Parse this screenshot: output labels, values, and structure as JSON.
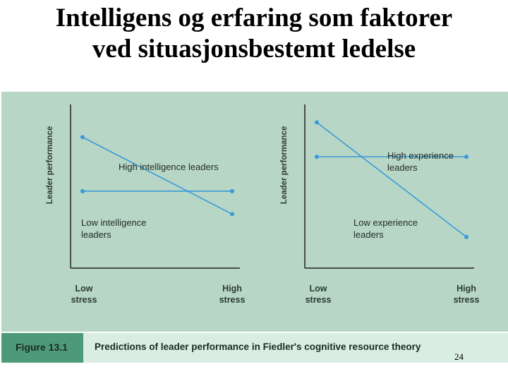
{
  "slide": {
    "title_line1": "Intelligens og erfaring som faktorer",
    "title_line2": "ved situasjonsbestemt ledelse",
    "page_number": "24"
  },
  "figure": {
    "tag": "Figure 13.1",
    "caption": "Predictions of leader performance in Fiedler's cognitive resource theory",
    "colors": {
      "background": "#b8d6c6",
      "caption_bar": "#d9ede3",
      "tag": "#4e9a78",
      "line": "#3a9ad9",
      "axis": "#222222"
    }
  },
  "chart_data": [
    {
      "type": "line",
      "ylabel": "Leader performance",
      "xlabel": "",
      "categories": [
        "Low\nstress",
        "High\nstress"
      ],
      "ylim": [
        0,
        100
      ],
      "grid": false,
      "series": [
        {
          "name": "High intelligence leaders",
          "values": [
            80,
            33
          ]
        },
        {
          "name": "Low intelligence leaders",
          "values": [
            47,
            47
          ]
        }
      ]
    },
    {
      "type": "line",
      "ylabel": "Leader performance",
      "xlabel": "",
      "categories": [
        "Low\nstress",
        "High\nstress"
      ],
      "ylim": [
        0,
        100
      ],
      "grid": false,
      "series": [
        {
          "name": "High experience leaders",
          "values": [
            68,
            68
          ]
        },
        {
          "name": "Low experience leaders",
          "values": [
            89,
            19
          ]
        }
      ]
    }
  ]
}
